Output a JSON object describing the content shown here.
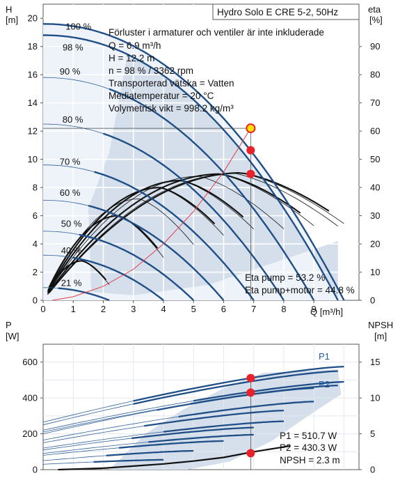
{
  "colors": {
    "background": "#ffffff",
    "range_fill": "#d5dfec",
    "max_range_fill": "#eef3fa",
    "curve_blue": "#1f4f86",
    "thin_line": "#2f5f97",
    "black_curve": "#111111",
    "system_curve": "#e0404a",
    "point_red": "#e8222a",
    "point_yellow": "#ffe100",
    "grid": "#ffffff",
    "text": "#111111"
  },
  "chart_data": [
    {
      "type": "line",
      "title": "Hydro Solo E CRE 5-2, 50Hz",
      "ylabel": "H",
      "yunit": "[m]",
      "y2label": "eta",
      "y2unit": "[%]",
      "xlabel": "Q [m³/h]",
      "xlim": [
        0,
        10.5
      ],
      "ylim": [
        0,
        21
      ],
      "y2lim": [
        0,
        105
      ],
      "xticks": [
        "0",
        "1",
        "2",
        "3",
        "4",
        "5",
        "6",
        "7",
        "8",
        "9"
      ],
      "yticks": [
        "0",
        "2",
        "4",
        "6",
        "8",
        "10",
        "12",
        "14",
        "16",
        "18",
        "20"
      ],
      "y2ticks": [
        "0",
        "10",
        "20",
        "30",
        "40",
        "50",
        "60",
        "70",
        "80",
        "90"
      ],
      "info_lines": [
        "Förluster i armaturer och ventiler är inte inkluderade",
        "Q = 6.9 m³/h",
        "H = 12.2 m",
        "n = 98 % / 3362 rpm",
        "Transporterad vätska = Vatten",
        "Mediatemperatur = 20 °C",
        "Volymetrisk vikt = 998.2 kg/m³"
      ],
      "eta_lines": [
        "Eta pump = 53.2 %",
        "Eta pump+motor = 44.8 %"
      ],
      "speed_labels": [
        {
          "label": "100 %",
          "x": 0.7,
          "y": 19.6
        },
        {
          "label": "98 %",
          "x": 0.6,
          "y": 17.9
        },
        {
          "label": "90 %",
          "x": 0.55,
          "y": 16.2
        },
        {
          "label": "80 %",
          "x": 0.55,
          "y": 12.8
        },
        {
          "label": "70 %",
          "x": 0.55,
          "y": 9.8
        },
        {
          "label": "60 %",
          "x": 0.55,
          "y": 7.6
        },
        {
          "label": "50 %",
          "x": 0.55,
          "y": 5.4
        },
        {
          "label": "40 %",
          "x": 0.55,
          "y": 3.5
        },
        {
          "label": "21 %",
          "x": 0.55,
          "y": 1.2
        }
      ],
      "head_curves": [
        {
          "name": "100 %",
          "shutoff": 19.6,
          "qmax": 10.0,
          "qleft": 0,
          "qright": 10.0
        },
        {
          "name": "98 %",
          "shutoff": 18.8,
          "qmax": 9.8,
          "qleft": 0,
          "qright": 9.8
        },
        {
          "name": "90 %",
          "shutoff": 15.8,
          "qmax": 9.0,
          "qleft": 2.2,
          "qright": 9.0
        },
        {
          "name": "80 %",
          "shutoff": 12.5,
          "qmax": 8.0,
          "qleft": 2.0,
          "qright": 8.0
        },
        {
          "name": "70 %",
          "shutoff": 9.6,
          "qmax": 7.0,
          "qleft": 1.7,
          "qright": 7.0
        },
        {
          "name": "60 %",
          "shutoff": 7.1,
          "qmax": 6.0,
          "qleft": 1.5,
          "qright": 6.0
        },
        {
          "name": "50 %",
          "shutoff": 4.9,
          "qmax": 5.0,
          "qleft": 1.2,
          "qright": 5.0
        },
        {
          "name": "40 %",
          "shutoff": 3.2,
          "qmax": 4.0,
          "qleft": 1.0,
          "qright": 4.0
        },
        {
          "name": "21 %",
          "shutoff": 0.9,
          "qmax": 2.2,
          "qleft": 0.5,
          "qright": 2.2
        }
      ],
      "eta_curves": [
        {
          "name": "100 %",
          "peak_q": 6.6,
          "peak_eta": 45.2,
          "qmax": 10.0
        },
        {
          "name": "98 %",
          "peak_q": 6.4,
          "peak_eta": 45.0,
          "qmax": 9.8
        },
        {
          "name": "90 %",
          "peak_q": 5.9,
          "peak_eta": 44.8,
          "qmax": 9.0
        },
        {
          "name": "80 %",
          "peak_q": 5.2,
          "peak_eta": 44.0,
          "qmax": 8.0
        },
        {
          "name": "70 %",
          "peak_q": 4.6,
          "peak_eta": 42.5,
          "qmax": 7.0
        },
        {
          "name": "60 %",
          "peak_q": 3.9,
          "peak_eta": 40.0,
          "qmax": 6.0
        },
        {
          "name": "50 %",
          "peak_q": 3.2,
          "peak_eta": 36.0,
          "qmax": 5.0
        },
        {
          "name": "40 %",
          "peak_q": 2.5,
          "peak_eta": 30.0,
          "qmax": 4.0
        },
        {
          "name": "21 %",
          "peak_q": 1.3,
          "peak_eta": 14.0,
          "qmax": 2.2
        }
      ],
      "system_curve": {
        "q": [
          0.3,
          1,
          2,
          3,
          4,
          5,
          6,
          6.9
        ],
        "h": [
          0.0,
          0.25,
          1.0,
          2.2,
          4.0,
          6.3,
          9.1,
          12.2
        ]
      },
      "duty_point": {
        "q": 6.9,
        "h": 12.2
      },
      "eta_points": [
        {
          "q": 6.9,
          "eta": 53.2
        },
        {
          "q": 6.9,
          "eta": 44.8
        }
      ]
    },
    {
      "type": "line",
      "ylabel": "P",
      "yunit": "[W]",
      "y2label": "NPSH",
      "y2unit": "[m]",
      "xlim": [
        0,
        10.5
      ],
      "ylim": [
        0,
        700
      ],
      "y2lim": [
        0,
        17.5
      ],
      "yticks": [
        "0",
        "200",
        "400",
        "600"
      ],
      "y2ticks": [
        "0",
        "5",
        "10",
        "15"
      ],
      "series_labels": [
        "P1",
        "P2"
      ],
      "power_lines": [
        "P1 = 510.7 W",
        "P2 = 430.3 W",
        "NPSH = 2.3 m"
      ],
      "p1_curves": [
        {
          "name": "100 %",
          "q": [
            0,
            10
          ],
          "p": [
            265,
            575
          ]
        },
        {
          "name": "98 %",
          "q": [
            0,
            9.8
          ],
          "p": [
            250,
            550
          ]
        },
        {
          "name": "90 %",
          "q": [
            0,
            9.0
          ],
          "p": [
            200,
            455
          ]
        },
        {
          "name": "80 %",
          "q": [
            0,
            8.0
          ],
          "p": [
            150,
            330
          ]
        },
        {
          "name": "70 %",
          "q": [
            0,
            7.0
          ],
          "p": [
            110,
            235
          ]
        },
        {
          "name": "60 %",
          "q": [
            0,
            6.0
          ],
          "p": [
            80,
            160
          ]
        },
        {
          "name": "50 %",
          "q": [
            0,
            5.0
          ],
          "p": [
            50,
            105
          ]
        },
        {
          "name": "40 %",
          "q": [
            0,
            4.0
          ],
          "p": [
            30,
            55
          ]
        }
      ],
      "p2_curves": [
        {
          "name": "100 %",
          "q": [
            0,
            10
          ],
          "p": [
            220,
            490
          ]
        },
        {
          "name": "98 %",
          "q": [
            0,
            9.8
          ],
          "p": [
            210,
            470
          ]
        },
        {
          "name": "90 %",
          "q": [
            0,
            9.0
          ],
          "p": [
            165,
            380
          ]
        },
        {
          "name": "80 %",
          "q": [
            0,
            8.0
          ],
          "p": [
            120,
            270
          ]
        },
        {
          "name": "70 %",
          "q": [
            0,
            7.0
          ],
          "p": [
            90,
            195
          ]
        }
      ],
      "npsh_curve": {
        "q": [
          0.5,
          2,
          3,
          4,
          5,
          6,
          7,
          8.2
        ],
        "npsh": [
          0.0,
          0.2,
          0.5,
          0.8,
          1.2,
          1.7,
          2.5,
          3.3
        ]
      },
      "duty_points": [
        {
          "q": 6.9,
          "p": 510.7
        },
        {
          "q": 6.9,
          "p": 430.3
        },
        {
          "q": 6.9,
          "npsh": 2.3
        }
      ]
    }
  ]
}
